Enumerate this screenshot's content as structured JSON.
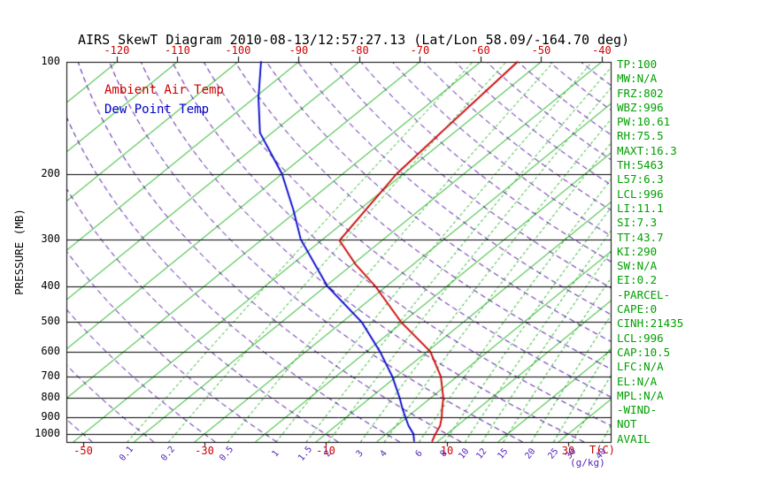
{
  "title": "AIRS SkewT Diagram 2010-08-13/12:57:27.13 (Lat/Lon 58.09/-164.70 deg)",
  "legend": {
    "temp_label": "Ambient Air Temp",
    "dewpoint_label": "Dew Point Temp"
  },
  "axes": {
    "y_label": "PRESSURE (MB)",
    "x_unit_label": "T(C)",
    "mixing_unit_label": "(g/kg)",
    "pressure_ticks": [
      100,
      200,
      300,
      400,
      500,
      600,
      700,
      800,
      900,
      1000
    ],
    "top_temp_ticks": [
      -120,
      -110,
      -100,
      -90,
      -80,
      -70,
      -60,
      -50,
      -40
    ],
    "bottom_temp_ticks": [
      -50,
      -30,
      -10,
      10,
      30
    ],
    "mixing_ratio_ticks": [
      0.1,
      0.2,
      0.5,
      1,
      1.5,
      2,
      3,
      4,
      6,
      8,
      10,
      12,
      15,
      20,
      25,
      30,
      40
    ]
  },
  "stats": [
    "TP:100",
    "MW:N/A",
    "FRZ:802",
    "WBZ:996",
    "PW:10.61",
    "RH:75.5",
    "MAXT:16.3",
    "TH:5463",
    "L57:6.3",
    "LCL:996",
    "LI:11.1",
    "SI:7.3",
    "TT:43.7",
    "KI:290",
    "SW:N/A",
    "EI:0.2",
    "-PARCEL-",
    "CAPE:0",
    "CINH:21435",
    "LCL:996",
    "CAP:10.5",
    "LFC:N/A",
    "EL:N/A",
    "MPL:N/A",
    "-WIND-",
    "NOT",
    "AVAIL"
  ],
  "colors": {
    "temp_curve": "#cc0000",
    "dewpoint_curve": "#0000cc",
    "isotherm": "#00aa00",
    "mixing_line": "#00aa00",
    "adiabat": "#440099",
    "stats_text": "#00a000",
    "top_labels": "#cc0000",
    "bottom_temp_labels": "#cc0000",
    "mixing_labels": "#5522bb",
    "pressure_labels": "#000000",
    "frame": "#000000"
  },
  "chart_data": {
    "type": "line",
    "title": "AIRS SkewT Diagram 2010-08-13/12:57:27.13 (Lat/Lon 58.09/-164.70 deg)",
    "xlabel": "T(C)",
    "ylabel": "PRESSURE (MB)",
    "y_scale": "log",
    "pressure_range_mb": [
      1050,
      100
    ],
    "isotherms_c": [
      -160,
      -150,
      -140,
      -130,
      -120,
      -110,
      -100,
      -90,
      -80,
      -70,
      -60,
      -50,
      -40,
      -30,
      -20,
      -10,
      0,
      10,
      20,
      30,
      40,
      50,
      60
    ],
    "dry_adiabats_theta_c": [
      -50,
      -40,
      -30,
      -20,
      -10,
      0,
      10,
      20,
      30,
      40,
      50,
      60,
      70,
      80,
      90,
      100,
      110,
      120,
      130,
      140,
      150,
      160,
      170
    ],
    "mixing_ratio_lines_g_kg": [
      0.1,
      0.2,
      0.5,
      1,
      1.5,
      2,
      3,
      4,
      6,
      8,
      10,
      12,
      15,
      20,
      25,
      30,
      40
    ],
    "series": [
      {
        "name": "Ambient Air Temp",
        "points_p_t": [
          [
            1044,
            9.0
          ],
          [
            1000,
            8.1
          ],
          [
            950,
            7.2
          ],
          [
            900,
            5.7
          ],
          [
            850,
            3.9
          ],
          [
            800,
            2.1
          ],
          [
            700,
            -2.7
          ],
          [
            600,
            -9.5
          ],
          [
            500,
            -20.3
          ],
          [
            400,
            -31.9
          ],
          [
            350,
            -39.5
          ],
          [
            302,
            -47.0
          ],
          [
            250,
            -48.9
          ],
          [
            200,
            -51.1
          ],
          [
            150,
            -52.3
          ],
          [
            100,
            -53.9
          ]
        ]
      },
      {
        "name": "Dew Point Temp",
        "points_p_t": [
          [
            1044,
            6.0
          ],
          [
            1000,
            4.5
          ],
          [
            950,
            2.0
          ],
          [
            900,
            -0.3
          ],
          [
            850,
            -2.7
          ],
          [
            800,
            -5.1
          ],
          [
            700,
            -10.7
          ],
          [
            600,
            -17.8
          ],
          [
            500,
            -26.8
          ],
          [
            400,
            -39.8
          ],
          [
            300,
            -53.6
          ],
          [
            250,
            -60.8
          ],
          [
            200,
            -70.0
          ],
          [
            155,
            -82.0
          ],
          [
            125,
            -89.3
          ],
          [
            100,
            -96.2
          ]
        ]
      }
    ]
  }
}
